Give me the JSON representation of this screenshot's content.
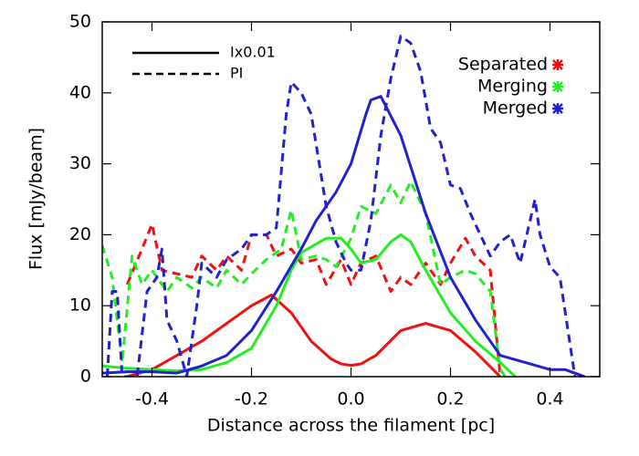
{
  "chart_data": {
    "type": "line",
    "xlabel": "Distance across the filament [pc]",
    "ylabel": "Flux [mJy/beam]",
    "xlim": [
      -0.5,
      0.5
    ],
    "ylim": [
      0,
      50
    ],
    "xticks": [
      -0.4,
      -0.2,
      {
        "value": 0,
        "label": "0.0"
      },
      0.2,
      0.4
    ],
    "yticks": [
      0,
      10,
      20,
      30,
      40,
      50
    ],
    "line_styles": {
      "intensity": "Ix0.01",
      "pi": "PI"
    },
    "series": [
      {
        "name": "Separated",
        "color": "#ee1111",
        "intensity": {
          "x": [
            -0.45,
            -0.4,
            -0.35,
            -0.3,
            -0.25,
            -0.2,
            -0.16,
            -0.12,
            -0.08,
            -0.04,
            -0.02,
            0.0,
            0.02,
            0.05,
            0.1,
            0.15,
            0.2,
            0.25,
            0.3
          ],
          "values": [
            0,
            1,
            3,
            5,
            7.5,
            10,
            11.5,
            9,
            5,
            2.5,
            1.8,
            1.6,
            1.8,
            3,
            6.5,
            7.5,
            6.5,
            3.5,
            0
          ]
        },
        "pi": {
          "x": [
            -0.45,
            -0.42,
            -0.4,
            -0.38,
            -0.35,
            -0.32,
            -0.3,
            -0.27,
            -0.25,
            -0.22,
            -0.2,
            -0.17,
            -0.15,
            -0.12,
            -0.1,
            -0.07,
            -0.05,
            -0.02,
            0.0,
            0.02,
            0.05,
            0.08,
            0.1,
            0.12,
            0.15,
            0.18,
            0.2,
            0.23,
            0.25,
            0.28,
            0.3
          ],
          "values": [
            13,
            18,
            21.5,
            15,
            14.5,
            14,
            17,
            15,
            17,
            15,
            20,
            20,
            17,
            18,
            16,
            16.5,
            13,
            16.5,
            13,
            16,
            17,
            12,
            14,
            13,
            16,
            13,
            16,
            19.5,
            17,
            15,
            0
          ]
        }
      },
      {
        "name": "Merging",
        "color": "#22ee22",
        "intensity": {
          "x": [
            -0.5,
            -0.45,
            -0.4,
            -0.35,
            -0.3,
            -0.25,
            -0.2,
            -0.15,
            -0.12,
            -0.1,
            -0.05,
            -0.02,
            0.0,
            0.02,
            0.05,
            0.08,
            0.1,
            0.12,
            0.15,
            0.2,
            0.25,
            0.3,
            0.33
          ],
          "values": [
            1.5,
            1.2,
            1,
            0.8,
            1,
            2,
            4,
            10,
            15,
            17.5,
            19.5,
            19.5,
            18,
            16,
            16.5,
            19,
            20,
            19,
            15,
            9,
            5,
            2,
            0
          ]
        },
        "pi": {
          "x": [
            -0.5,
            -0.48,
            -0.46,
            -0.44,
            -0.42,
            -0.4,
            -0.37,
            -0.35,
            -0.32,
            -0.3,
            -0.27,
            -0.25,
            -0.22,
            -0.2,
            -0.17,
            -0.14,
            -0.12,
            -0.1,
            -0.07,
            -0.05,
            -0.03,
            0.0,
            0.02,
            0.05,
            0.08,
            0.1,
            0.12,
            0.15,
            0.18,
            0.2,
            0.23,
            0.25,
            0.28,
            0.3,
            0.31
          ],
          "values": [
            18.5,
            14,
            2,
            17,
            13,
            15,
            12,
            14,
            12.5,
            14,
            12.5,
            15,
            13,
            14.5,
            16.5,
            18,
            23.5,
            16.5,
            17,
            16.5,
            15.5,
            19.5,
            24,
            23,
            27,
            24.5,
            27.5,
            23,
            13,
            14,
            15,
            14.5,
            12,
            1,
            0
          ]
        }
      },
      {
        "name": "Merged",
        "color": "#2222cc",
        "intensity": {
          "x": [
            -0.5,
            -0.45,
            -0.4,
            -0.35,
            -0.3,
            -0.25,
            -0.2,
            -0.15,
            -0.1,
            -0.07,
            -0.03,
            0.0,
            0.03,
            0.04,
            0.06,
            0.1,
            0.15,
            0.2,
            0.25,
            0.3,
            0.35,
            0.4,
            0.43,
            0.47
          ],
          "values": [
            0.5,
            0.7,
            0.7,
            0.5,
            1.5,
            3,
            6.5,
            12,
            18,
            22,
            26,
            30,
            37,
            39,
            39.5,
            34,
            23,
            14,
            8,
            3,
            2,
            1,
            1,
            0
          ]
        },
        "pi": {
          "x": [
            -0.49,
            -0.48,
            -0.47,
            -0.46,
            -0.43,
            -0.41,
            -0.39,
            -0.38,
            -0.37,
            -0.35,
            -0.33,
            -0.31,
            -0.3,
            -0.27,
            -0.25,
            -0.22,
            -0.2,
            -0.17,
            -0.15,
            -0.13,
            -0.12,
            -0.1,
            -0.08,
            -0.05,
            -0.03,
            -0.01,
            0.0,
            0.02,
            0.04,
            0.06,
            0.08,
            0.1,
            0.12,
            0.14,
            0.16,
            0.18,
            0.2,
            0.22,
            0.24,
            0.26,
            0.28,
            0.3,
            0.32,
            0.34,
            0.36,
            0.37,
            0.38,
            0.4,
            0.42,
            0.45
          ],
          "values": [
            0,
            12,
            12,
            0,
            0,
            12,
            14,
            18,
            8,
            5,
            0,
            10,
            16,
            14,
            16.5,
            18,
            20,
            20,
            21,
            37,
            41.5,
            40,
            37,
            24,
            19,
            16,
            15,
            15,
            22,
            34,
            42,
            48,
            47,
            43,
            35,
            33,
            27,
            26.5,
            23,
            20,
            17,
            19,
            20,
            16,
            22,
            25,
            20,
            15.5,
            14,
            0
          ]
        }
      }
    ]
  }
}
